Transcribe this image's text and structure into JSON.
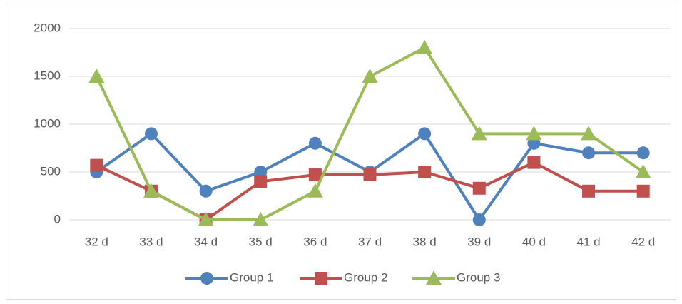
{
  "chart_data": {
    "type": "line",
    "categories": [
      "32 d",
      "33 d",
      "34 d",
      "35 d",
      "36 d",
      "37 d",
      "38 d",
      "39 d",
      "40 d",
      "41 d",
      "42 d"
    ],
    "series": [
      {
        "name": "Group 1",
        "color": "#4f81bd",
        "marker": "circle",
        "values": [
          500,
          900,
          300,
          500,
          800,
          500,
          900,
          0,
          800,
          700,
          700
        ]
      },
      {
        "name": "Group 2",
        "color": "#c0504d",
        "marker": "square",
        "values": [
          570,
          300,
          0,
          400,
          470,
          470,
          500,
          330,
          600,
          300,
          300
        ]
      },
      {
        "name": "Group 3",
        "color": "#9bbb59",
        "marker": "triangle",
        "values": [
          1500,
          300,
          0,
          0,
          300,
          1500,
          1800,
          900,
          900,
          900,
          500
        ]
      }
    ],
    "ylim": [
      0,
      2000
    ],
    "yticks": [
      0,
      500,
      1000,
      1500,
      2000
    ],
    "grid": true,
    "legend": "bottom"
  }
}
